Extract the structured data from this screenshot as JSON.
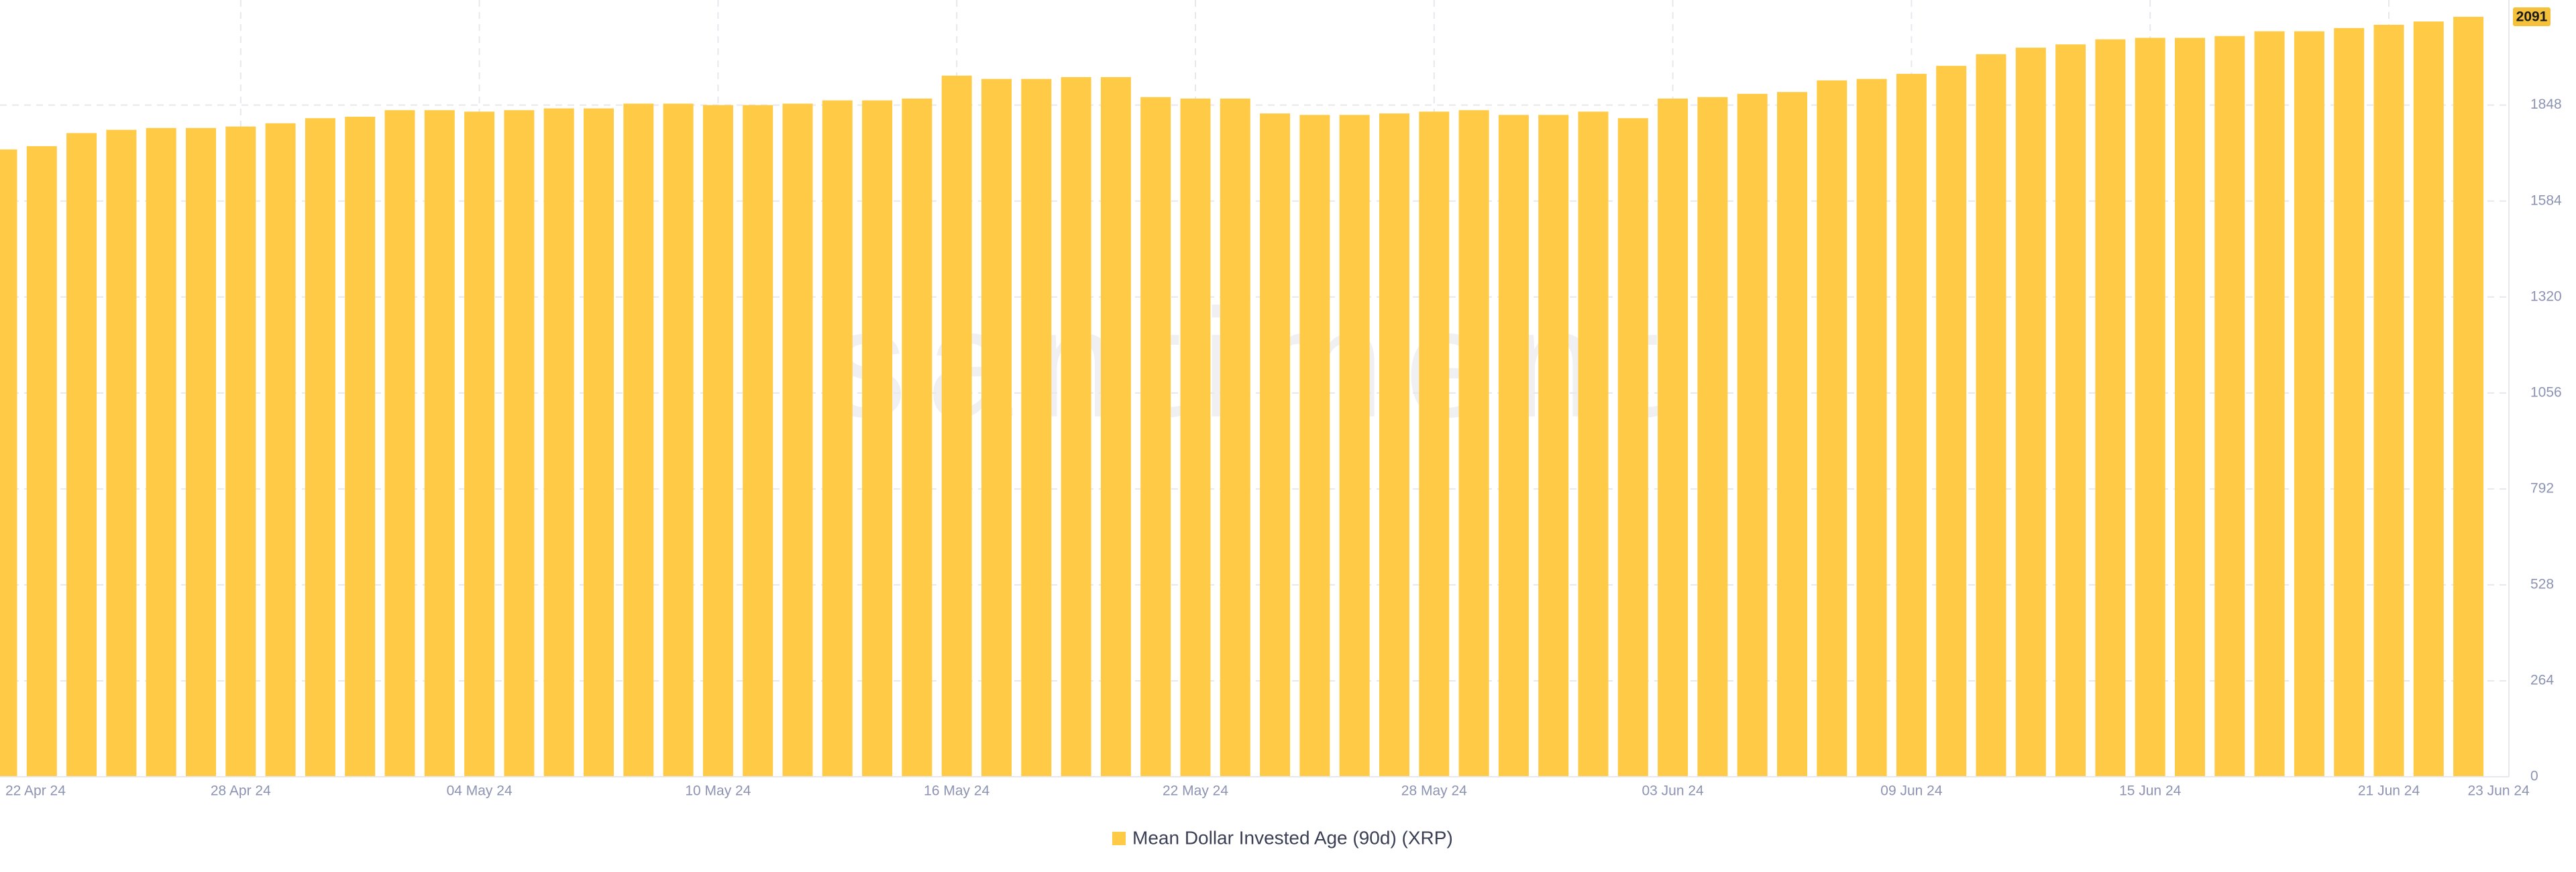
{
  "chart_data": {
    "type": "bar",
    "watermark": "santiment",
    "categories": [
      "22 Apr 24",
      null,
      null,
      null,
      null,
      null,
      "28 Apr 24",
      null,
      null,
      null,
      null,
      null,
      "04 May 24",
      null,
      null,
      null,
      null,
      null,
      "10 May 24",
      null,
      null,
      null,
      null,
      null,
      "16 May 24",
      null,
      null,
      null,
      null,
      null,
      "22 May 24",
      null,
      null,
      null,
      null,
      null,
      "28 May 24",
      null,
      null,
      null,
      null,
      null,
      "03 Jun 24",
      null,
      null,
      null,
      null,
      null,
      "09 Jun 24",
      null,
      null,
      null,
      null,
      null,
      "15 Jun 24",
      null,
      null,
      null,
      null,
      null,
      "21 Jun 24",
      null,
      "23 Jun 24"
    ],
    "series": [
      {
        "name": "Mean Dollar Invested Age (90d) (XRP)",
        "color": "#ffcb47",
        "values": [
          1726,
          1735,
          1771,
          1780,
          1785,
          1785,
          1789,
          1798,
          1812,
          1816,
          1834,
          1834,
          1830,
          1834,
          1839,
          1839,
          1852,
          1852,
          1848,
          1848,
          1852,
          1861,
          1861,
          1866,
          1929,
          1920,
          1920,
          1925,
          1925,
          1870,
          1866,
          1866,
          1825,
          1821,
          1821,
          1825,
          1830,
          1834,
          1821,
          1821,
          1830,
          1812,
          1866,
          1870,
          1879,
          1884,
          1916,
          1920,
          1934,
          1956,
          1988,
          2006,
          2015,
          2029,
          2033,
          2033,
          2038,
          2051,
          2051,
          2060,
          2069,
          2078,
          2091
        ]
      }
    ],
    "ylim": [
      0,
      2115
    ],
    "yticks": [
      0,
      264,
      528,
      792,
      1056,
      1320,
      1584,
      1848
    ],
    "grid": true,
    "legend": "bottom"
  }
}
